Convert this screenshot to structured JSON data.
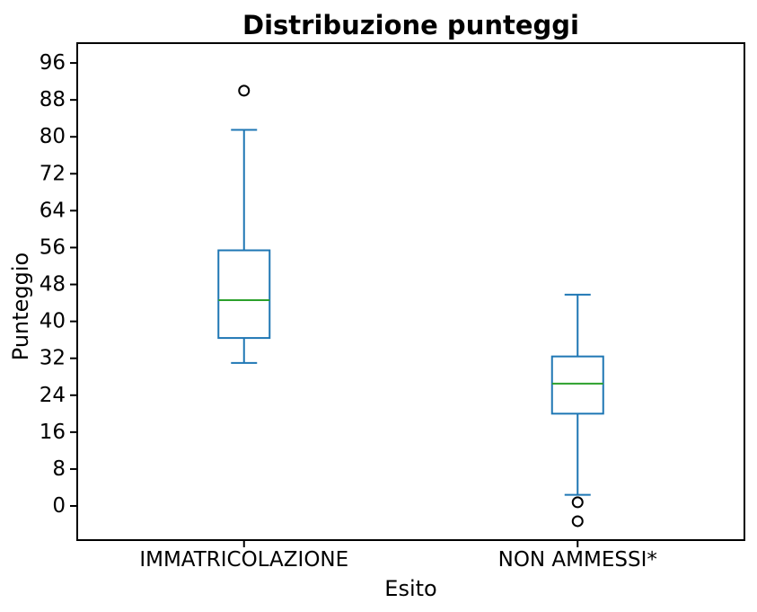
{
  "chart_data": {
    "type": "boxplot",
    "title": "Distribuzione punteggi",
    "xlabel": "Esito",
    "ylabel": "Punteggio",
    "categories": [
      "IMMATRICOLAZIONE",
      "NON AMMESSI*"
    ],
    "positions": [
      1,
      2
    ],
    "xlim": [
      0.5,
      2.5
    ],
    "ylim": [
      -7.4,
      100.3
    ],
    "yticks": [
      0,
      8,
      16,
      24,
      32,
      40,
      48,
      56,
      64,
      72,
      80,
      88,
      96
    ],
    "grid": false,
    "legend": "none",
    "series": [
      {
        "name": "IMMATRICOLAZIONE",
        "whisker_low": 31.0,
        "q1": 36.4,
        "median": 44.6,
        "q3": 55.4,
        "whisker_high": 81.5,
        "outliers": [
          90.0
        ]
      },
      {
        "name": "NON AMMESSI*",
        "whisker_low": 2.4,
        "q1": 20.0,
        "median": 26.5,
        "q3": 32.4,
        "whisker_high": 45.8,
        "outliers": [
          0.8,
          -3.3
        ]
      }
    ],
    "colors": {
      "box": "#1f77b4",
      "median": "#2ca02c",
      "outlier_edge": "#000000",
      "axis": "#000000",
      "background": "#ffffff"
    }
  }
}
